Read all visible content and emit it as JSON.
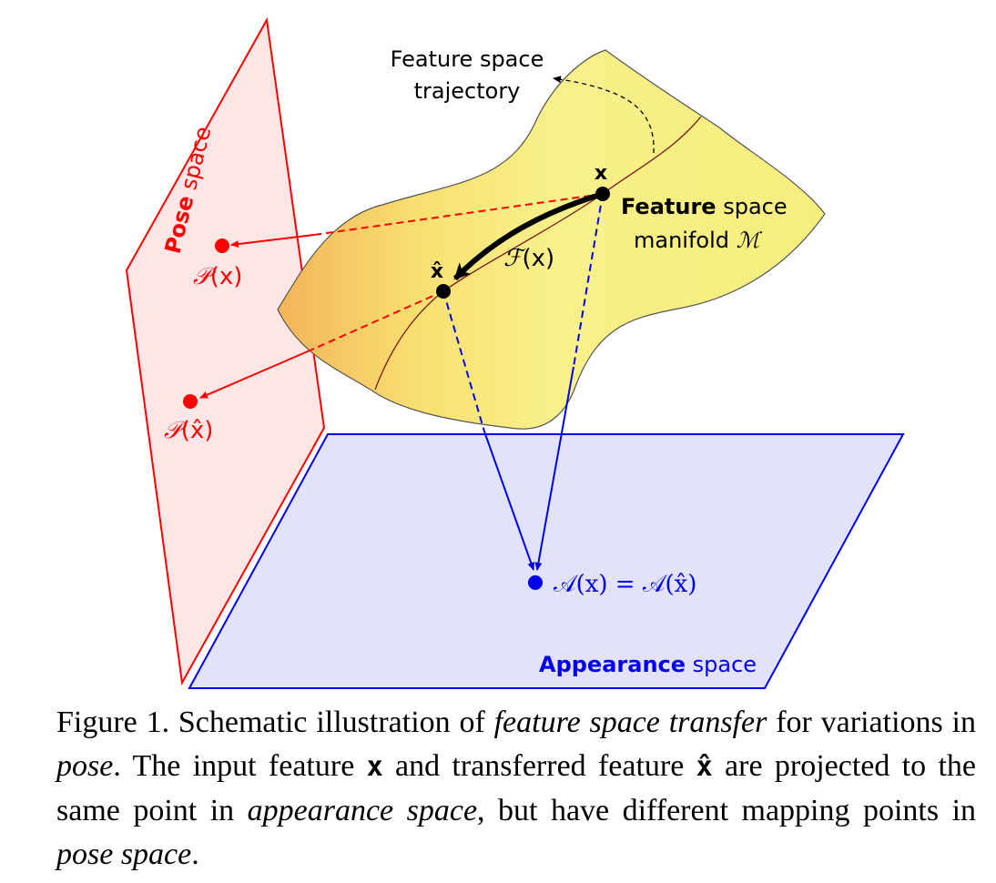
{
  "labels": {
    "feature_traj_line1": "Feature space",
    "feature_traj_line2": "trajectory",
    "pose_bold": "Pose",
    "pose_rest": " space",
    "feature_bold": "Feature",
    "feature_rest": " space",
    "manifold_text": "manifold ",
    "manifold_symbol": "ℳ",
    "x": "x",
    "x_hat": "x̂",
    "F_symbol": "ℱ",
    "F_arg": "(x)",
    "P_symbol": "𝒫",
    "P_x_arg": "(x)",
    "P_xhat_arg": "(x̂)",
    "A_eq": "𝒜(x) = 𝒜(x̂)",
    "appearance_bold": "Appearance",
    "appearance_rest": " space"
  },
  "caption": {
    "fig_label": "Figure 1. Schematic illustration of ",
    "em1": "feature space transfer",
    "t1": " for variations in ",
    "em2": "pose",
    "t2": ". The input feature ",
    "x": "x",
    "t3": " and transferred feature ",
    "xhat": "x̂",
    "t4": " are projected to the same point in ",
    "em3": "appearance space",
    "t5": ", but have different mapping points in ",
    "em4": "pose space",
    "t6": "."
  },
  "colors": {
    "pose": "#ff0000",
    "pose_fill": "#fde2e2",
    "appearance": "#0000ee",
    "appearance_fill": "#e2e2fb",
    "manifold_fill": "#f7ee80",
    "manifold_edge": "#8a6a20",
    "trajectory": "#7a1a1a"
  }
}
